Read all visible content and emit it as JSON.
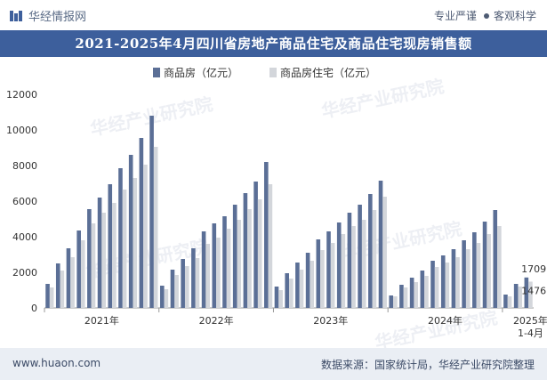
{
  "header": {
    "brand_name": "华经情报网",
    "tag_left": "专业严谨",
    "tag_right": "客观科学"
  },
  "title": "2021-2025年4月四川省房地产商品住宅及商品住宅现房销售额",
  "footer": {
    "website": "www.huaon.com",
    "source": "数据来源：国家统计局，华经产业研究院整理"
  },
  "watermark": "华经产业研究院",
  "colors": {
    "series1": "#5b6f96",
    "series2": "#d3d6db",
    "title_bg": "#3d5f9c",
    "footer_bg": "#eaeef4"
  },
  "chart_data": {
    "type": "bar",
    "ylim": [
      0,
      12000
    ],
    "yticks": [
      0,
      2000,
      4000,
      6000,
      8000,
      10000,
      12000
    ],
    "legend_position": "top",
    "series": [
      {
        "name": "商品房（亿元）",
        "values": [
          1350,
          2500,
          3350,
          4350,
          5550,
          6200,
          6950,
          7850,
          8600,
          9550,
          10800,
          1250,
          2150,
          2750,
          3350,
          4300,
          4750,
          5150,
          5800,
          6450,
          7100,
          8200,
          1200,
          1950,
          2550,
          3100,
          3850,
          4300,
          4800,
          5350,
          5800,
          6400,
          7150,
          700,
          1300,
          1700,
          2100,
          2650,
          2950,
          3300,
          3800,
          4250,
          4850,
          5500,
          750,
          1350,
          1709.52
        ]
      },
      {
        "name": "商品房住宅（亿元）",
        "values": [
          1150,
          2100,
          2850,
          3800,
          4750,
          5350,
          5900,
          6650,
          7300,
          8050,
          9050,
          1050,
          1850,
          2350,
          2800,
          3600,
          3950,
          4450,
          4950,
          5550,
          6100,
          6950,
          1000,
          1650,
          2150,
          2650,
          3250,
          3650,
          4150,
          4600,
          4950,
          5500,
          6250,
          650,
          1150,
          1450,
          1800,
          2300,
          2550,
          2850,
          3300,
          3650,
          4150,
          4600,
          650,
          1200,
          1476.77
        ]
      }
    ],
    "x_group_labels": [
      "2021年",
      "2022年",
      "2023年",
      "2024年",
      "2025年\n1-4月"
    ],
    "group_sizes": [
      11,
      11,
      11,
      11,
      3
    ],
    "annotations": [
      {
        "series": 0,
        "index": 46,
        "text": "1709.52"
      },
      {
        "series": 1,
        "index": 46,
        "text": "1476.77"
      }
    ]
  }
}
